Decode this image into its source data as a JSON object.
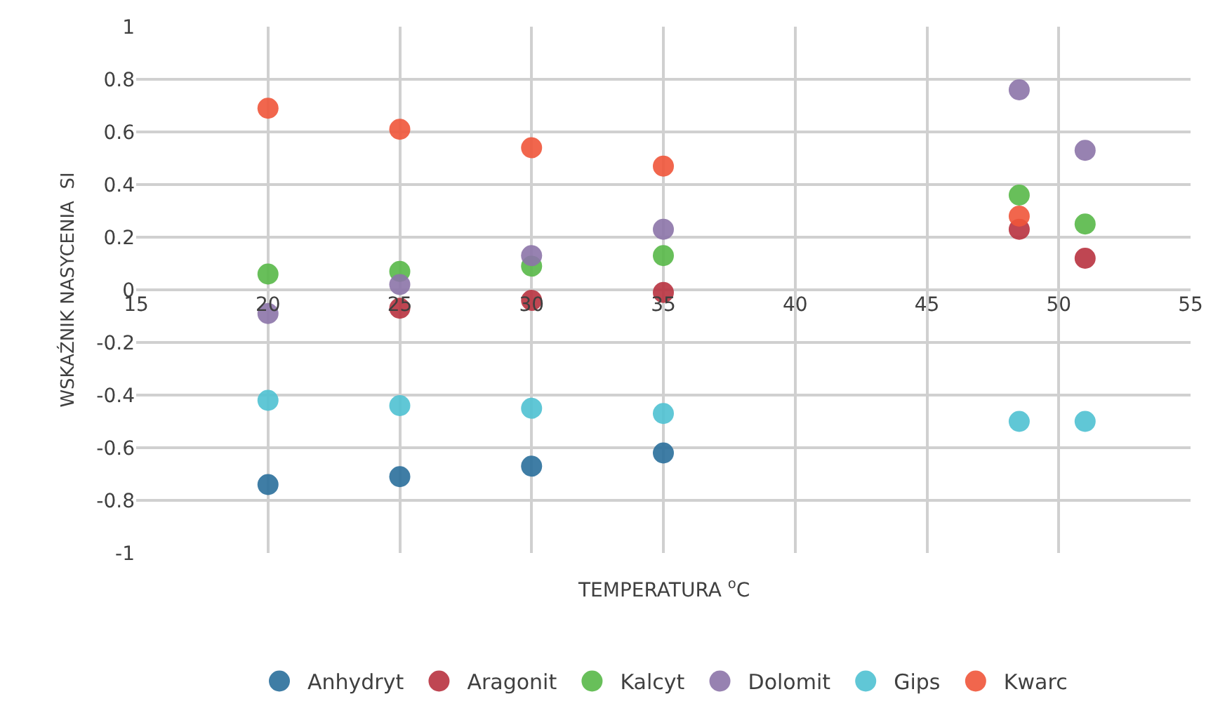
{
  "chart_data": {
    "type": "scatter",
    "xlabel": "TEMPERATURA $^{o}$C",
    "ylabel": "WSKAŹNIK NASYCENIA  SI",
    "x": [
      20,
      25,
      30,
      35,
      48.5,
      51
    ],
    "series": [
      {
        "name": "Anhydryt",
        "color": "#2a6f9b",
        "values": [
          -0.74,
          -0.71,
          -0.67,
          -0.62,
          null,
          null
        ]
      },
      {
        "name": "Aragonit",
        "color": "#b8323f",
        "values": [
          null,
          -0.07,
          -0.04,
          -0.01,
          0.23,
          0.12
        ]
      },
      {
        "name": "Kalcyt",
        "color": "#58b848",
        "values": [
          0.06,
          0.07,
          0.09,
          0.13,
          0.36,
          0.25
        ]
      },
      {
        "name": "Dolomit",
        "color": "#8c74a8",
        "values": [
          -0.09,
          0.02,
          0.13,
          0.23,
          0.76,
          0.53
        ]
      },
      {
        "name": "Gips",
        "color": "#4fc1d1",
        "values": [
          -0.42,
          -0.44,
          -0.45,
          -0.47,
          -0.5,
          -0.5
        ]
      },
      {
        "name": "Kwarc",
        "color": "#f0553a",
        "values": [
          0.69,
          0.61,
          0.54,
          0.47,
          0.28,
          null
        ]
      }
    ],
    "xlim": [
      15,
      55
    ],
    "xticks": [
      15,
      20,
      25,
      30,
      35,
      40,
      45,
      50,
      55
    ],
    "ylim": [
      -1,
      1
    ],
    "yticks": [
      -1,
      -0.8,
      -0.6,
      -0.4,
      -0.2,
      0,
      0.2,
      0.4,
      0.6,
      0.8,
      1
    ],
    "grid": true,
    "legend": "bottom",
    "marker": "circle"
  }
}
